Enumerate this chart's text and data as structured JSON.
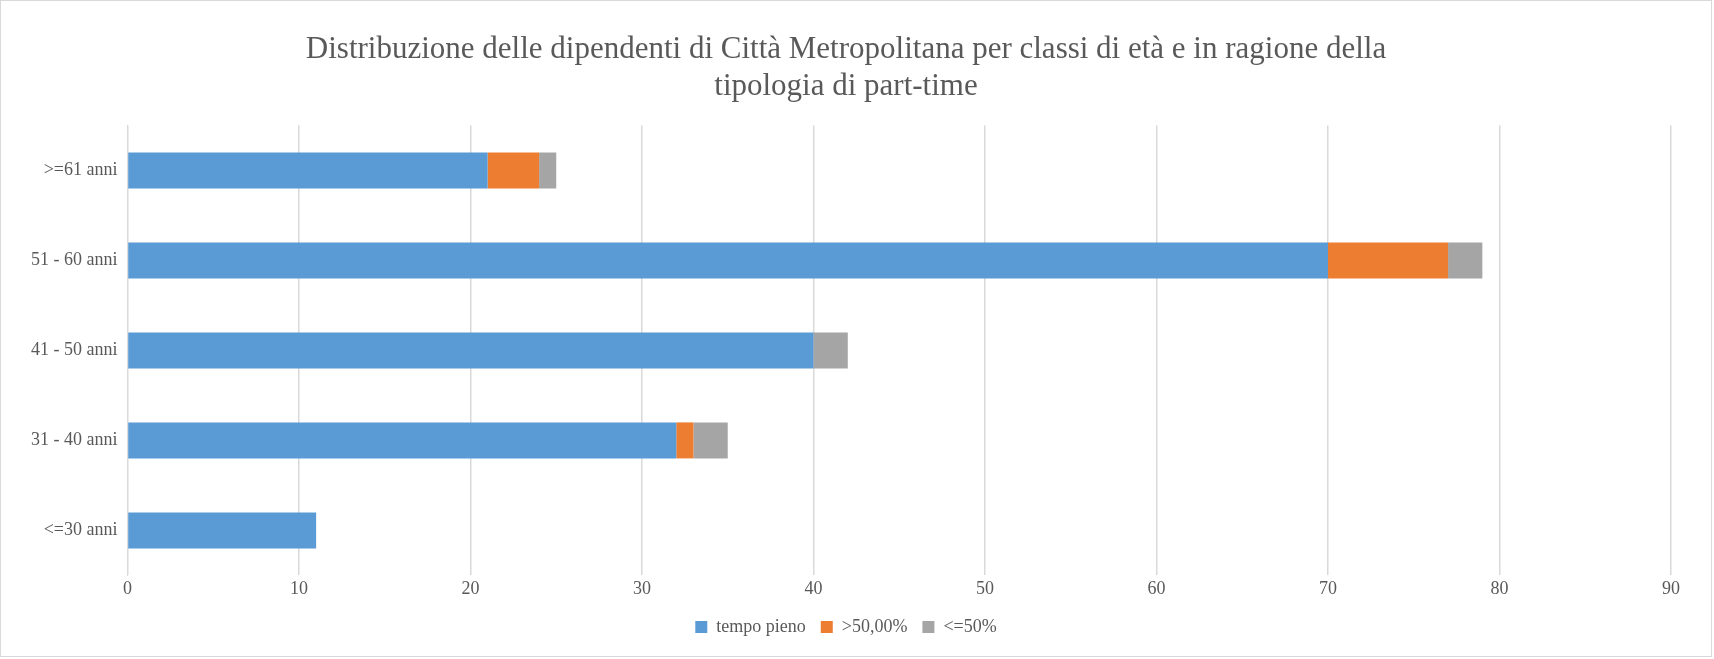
{
  "chart_data": {
    "type": "bar",
    "orientation": "horizontal",
    "stacked": true,
    "title": "Distribuzione delle dipendenti di Città Metropolitana per classi di età e in ragione della tipologia di part-time",
    "categories": [
      ">=61 anni",
      "51 - 60 anni",
      "41 - 50 anni",
      "31 - 40 anni",
      "<=30 anni"
    ],
    "series": [
      {
        "name": "tempo pieno",
        "color": "#5b9bd5",
        "values": [
          21,
          70,
          40,
          32,
          11
        ]
      },
      {
        "name": ">50,00%",
        "color": "#ed7d31",
        "values": [
          3,
          7,
          0,
          1,
          0
        ]
      },
      {
        "name": "<=50%",
        "color": "#a5a5a5",
        "values": [
          1,
          2,
          2,
          2,
          0
        ]
      }
    ],
    "xlim": [
      0,
      90
    ],
    "xticks": [
      0,
      10,
      20,
      30,
      40,
      50,
      60,
      70,
      80,
      90
    ],
    "grid": "x",
    "legend": "bottom"
  }
}
